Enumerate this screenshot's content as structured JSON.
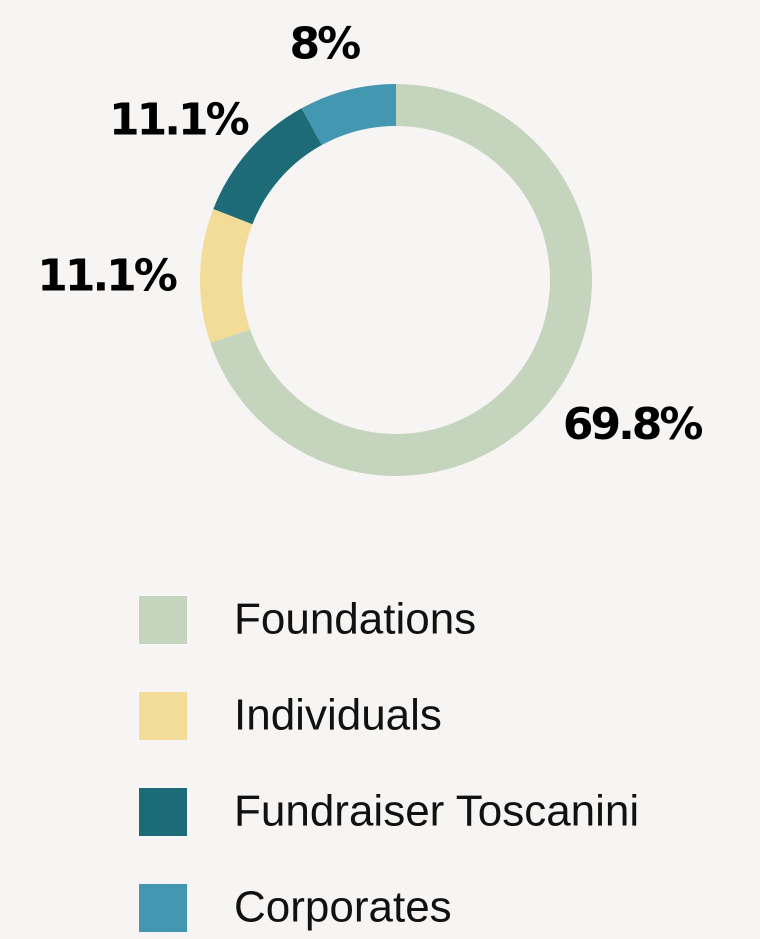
{
  "chart_data": {
    "type": "donut",
    "categories": [
      "Foundations",
      "Individuals",
      "Fundraiser Toscanini",
      "Corporates"
    ],
    "values": [
      69.8,
      11.1,
      11.1,
      8
    ],
    "value_labels": [
      "69.8%",
      "11.1%",
      "11.1%",
      "8%"
    ],
    "colors": [
      "#c5d4bd",
      "#f3db98",
      "#1c6b77",
      "#4397b1"
    ]
  }
}
